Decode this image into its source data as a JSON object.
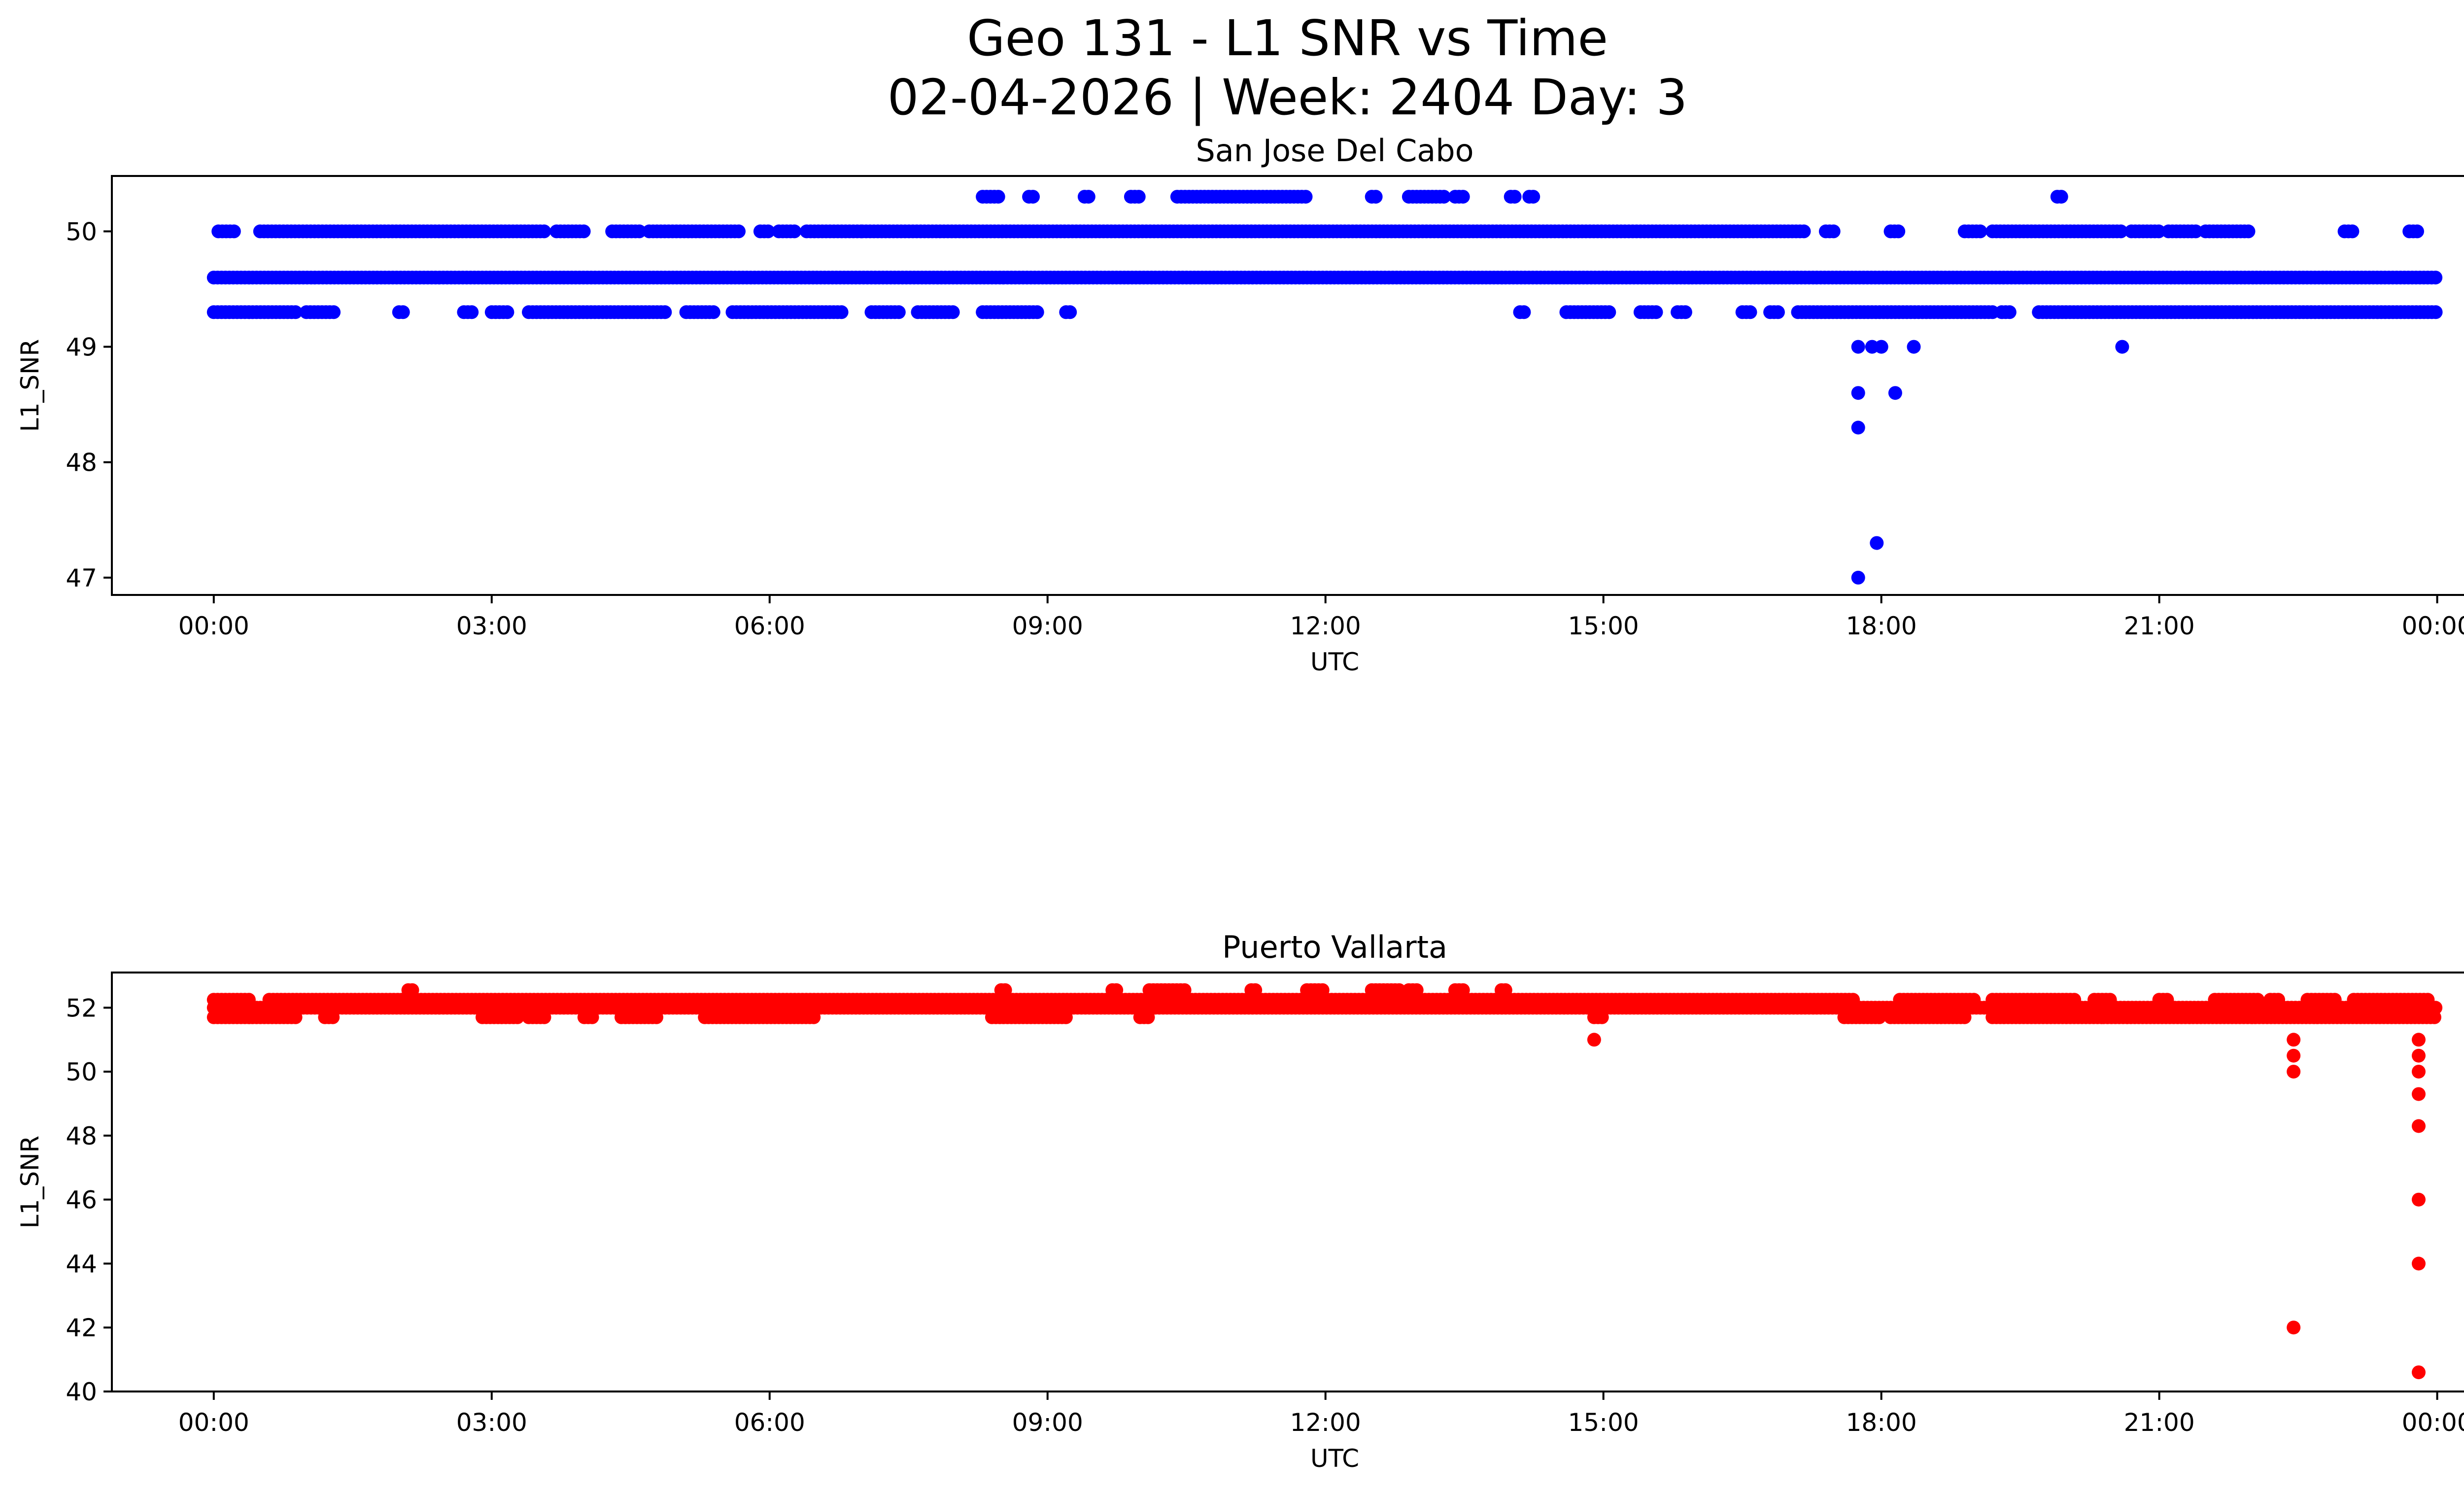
{
  "figure": {
    "title_line1": "Geo 131 - L1 SNR vs Time",
    "title_line2": "02-04-2026 | Week: 2404 Day: 3"
  },
  "chart_data": [
    {
      "type": "scatter",
      "title": "San Jose Del Cabo",
      "xlabel": "UTC",
      "ylabel": "L1_SNR",
      "color": "#0000ff",
      "xlim_hours": [
        -1.1,
        25.3
      ],
      "ylim": [
        46.85,
        50.48
      ],
      "xticks": [
        0,
        3,
        6,
        9,
        12,
        15,
        18,
        21,
        24
      ],
      "xtick_labels": [
        "00:00",
        "03:00",
        "06:00",
        "09:00",
        "12:00",
        "15:00",
        "18:00",
        "21:00",
        "00:00"
      ],
      "yticks": [
        47,
        48,
        49,
        50
      ],
      "ytick_labels": [
        "47",
        "48",
        "49",
        "50"
      ],
      "series": [
        {
          "name": "continuous",
          "y_value": 49.6,
          "x_ranges_hours": [
            [
              0.0,
              24.0
            ]
          ]
        },
        {
          "name": "upper band",
          "y_value": 50.0,
          "x_ranges_hours": [
            [
              0.05,
              0.25
            ],
            [
              0.5,
              3.6
            ],
            [
              3.7,
              4.0
            ],
            [
              4.3,
              4.6
            ],
            [
              4.7,
              5.7
            ],
            [
              5.9,
              6.0
            ],
            [
              6.1,
              6.3
            ],
            [
              6.4,
              7.0
            ],
            [
              7.0,
              17.2
            ],
            [
              17.4,
              17.5
            ],
            [
              18.1,
              18.2
            ],
            [
              18.9,
              19.1
            ],
            [
              19.2,
              20.6
            ],
            [
              20.7,
              21.0
            ],
            [
              21.1,
              21.4
            ],
            [
              21.5,
              22.0
            ],
            [
              23.0,
              23.1
            ],
            [
              23.7,
              23.8
            ]
          ]
        },
        {
          "name": "lower band",
          "y_value": 49.3,
          "x_ranges_hours": [
            [
              0.0,
              0.9
            ],
            [
              1.0,
              1.3
            ],
            [
              2.0,
              2.05
            ],
            [
              2.7,
              2.8
            ],
            [
              3.0,
              3.2
            ],
            [
              3.4,
              4.9
            ],
            [
              5.1,
              5.4
            ],
            [
              5.6,
              6.8
            ],
            [
              7.1,
              7.4
            ],
            [
              7.6,
              8.0
            ],
            [
              8.3,
              8.9
            ],
            [
              9.2,
              9.25
            ],
            [
              14.1,
              14.15
            ],
            [
              14.6,
              15.1
            ],
            [
              15.4,
              15.6
            ],
            [
              15.8,
              15.9
            ],
            [
              16.5,
              16.6
            ],
            [
              16.8,
              16.9
            ],
            [
              17.1,
              19.2
            ],
            [
              19.3,
              19.4
            ],
            [
              19.7,
              24.0
            ]
          ]
        },
        {
          "name": "top band",
          "y_value": 50.3,
          "x_ranges_hours": [
            [
              8.3,
              8.5
            ],
            [
              8.8,
              8.85
            ],
            [
              9.4,
              9.45
            ],
            [
              9.9,
              10.0
            ],
            [
              10.4,
              11.8
            ],
            [
              12.5,
              12.55
            ],
            [
              12.9,
              13.3
            ],
            [
              13.4,
              13.5
            ],
            [
              14.0,
              14.05
            ],
            [
              14.2,
              14.25
            ],
            [
              19.9,
              19.95
            ]
          ]
        },
        {
          "name": "dips",
          "points": [
            [
              17.75,
              49.0
            ],
            [
              17.9,
              49.0
            ],
            [
              18.0,
              49.0
            ],
            [
              18.35,
              49.0
            ],
            [
              20.6,
              49.0
            ],
            [
              17.75,
              48.6
            ],
            [
              18.15,
              48.6
            ],
            [
              17.75,
              48.3
            ],
            [
              17.95,
              47.3
            ],
            [
              17.75,
              47.0
            ]
          ]
        }
      ]
    },
    {
      "type": "scatter",
      "title": "Puerto Vallarta",
      "xlabel": "UTC",
      "ylabel": "L1_SNR",
      "color": "#ff0000",
      "xlim_hours": [
        -1.1,
        25.3
      ],
      "ylim": [
        40.0,
        53.1
      ],
      "xticks": [
        0,
        3,
        6,
        9,
        12,
        15,
        18,
        21,
        24
      ],
      "xtick_labels": [
        "00:00",
        "03:00",
        "06:00",
        "09:00",
        "12:00",
        "15:00",
        "18:00",
        "21:00",
        "00:00"
      ],
      "yticks": [
        40,
        42,
        44,
        46,
        48,
        50,
        52
      ],
      "ytick_labels": [
        "40",
        "42",
        "44",
        "46",
        "48",
        "50",
        "52"
      ],
      "series": [
        {
          "name": "main band",
          "y_value": 52.0,
          "x_ranges_hours": [
            [
              0.0,
              24.0
            ]
          ]
        },
        {
          "name": "upper band",
          "y_value": 52.25,
          "x_ranges_hours": [
            [
              0.0,
              0.4
            ],
            [
              0.6,
              17.7
            ],
            [
              18.2,
              19.0
            ],
            [
              19.2,
              20.1
            ],
            [
              20.3,
              20.5
            ],
            [
              21.0,
              21.1
            ],
            [
              21.6,
              22.1
            ],
            [
              22.2,
              22.3
            ],
            [
              22.6,
              22.9
            ],
            [
              23.1,
              23.9
            ]
          ]
        },
        {
          "name": "lower band",
          "y_value": 51.7,
          "x_ranges_hours": [
            [
              0.0,
              0.9
            ],
            [
              1.2,
              1.3
            ],
            [
              2.9,
              3.3
            ],
            [
              3.4,
              3.6
            ],
            [
              4.0,
              4.1
            ],
            [
              4.4,
              4.8
            ],
            [
              5.3,
              6.5
            ],
            [
              8.4,
              9.2
            ],
            [
              10.0,
              10.1
            ],
            [
              14.9,
              15.0
            ],
            [
              17.6,
              18.0
            ],
            [
              18.1,
              18.9
            ],
            [
              19.2,
              20.4
            ],
            [
              20.4,
              24.0
            ]
          ]
        },
        {
          "name": "top band",
          "y_value": 52.55,
          "x_ranges_hours": [
            [
              2.1,
              2.15
            ],
            [
              8.5,
              8.55
            ],
            [
              9.7,
              9.75
            ],
            [
              10.1,
              10.5
            ],
            [
              11.2,
              11.25
            ],
            [
              11.8,
              12.0
            ],
            [
              12.5,
              12.8
            ],
            [
              12.9,
              13.0
            ],
            [
              13.4,
              13.5
            ],
            [
              13.9,
              13.95
            ]
          ]
        },
        {
          "name": "dips",
          "points": [
            [
              14.9,
              51.0
            ],
            [
              22.45,
              51.0
            ],
            [
              22.45,
              50.5
            ],
            [
              22.45,
              50.0
            ],
            [
              23.8,
              51.0
            ],
            [
              23.8,
              50.5
            ],
            [
              23.8,
              50.0
            ],
            [
              23.8,
              49.3
            ],
            [
              23.8,
              48.3
            ],
            [
              23.8,
              46.0
            ],
            [
              23.8,
              44.0
            ],
            [
              22.45,
              42.0
            ],
            [
              23.8,
              40.6
            ]
          ]
        }
      ]
    }
  ]
}
